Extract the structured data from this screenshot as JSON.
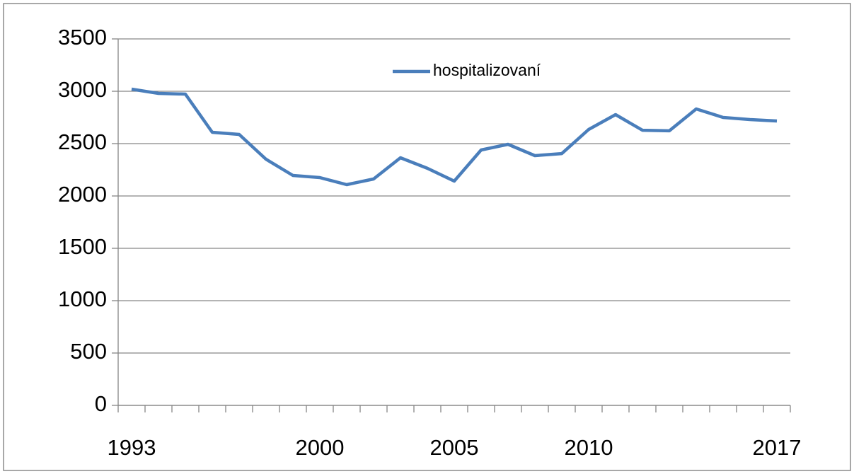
{
  "chart_data": {
    "type": "line",
    "categories": [
      "1993",
      null,
      null,
      null,
      null,
      null,
      null,
      "2000",
      null,
      null,
      null,
      null,
      "2005",
      null,
      null,
      null,
      null,
      "2010",
      null,
      null,
      null,
      null,
      null,
      null,
      "2017"
    ],
    "series": [
      {
        "name": "hospitalizovaní",
        "color": "#4a7ebb",
        "values": [
          3020,
          2980,
          2973,
          2608,
          2588,
          2351,
          2196,
          2176,
          2108,
          2162,
          2365,
          2264,
          2142,
          2439,
          2493,
          2385,
          2405,
          2635,
          2777,
          2628,
          2622,
          2831,
          2750,
          2730,
          2716
        ]
      }
    ],
    "ylim": [
      0,
      3500
    ],
    "yticks": [
      0,
      500,
      1000,
      1500,
      2000,
      2500,
      3000,
      3500
    ],
    "grid": true,
    "legend": "top"
  }
}
